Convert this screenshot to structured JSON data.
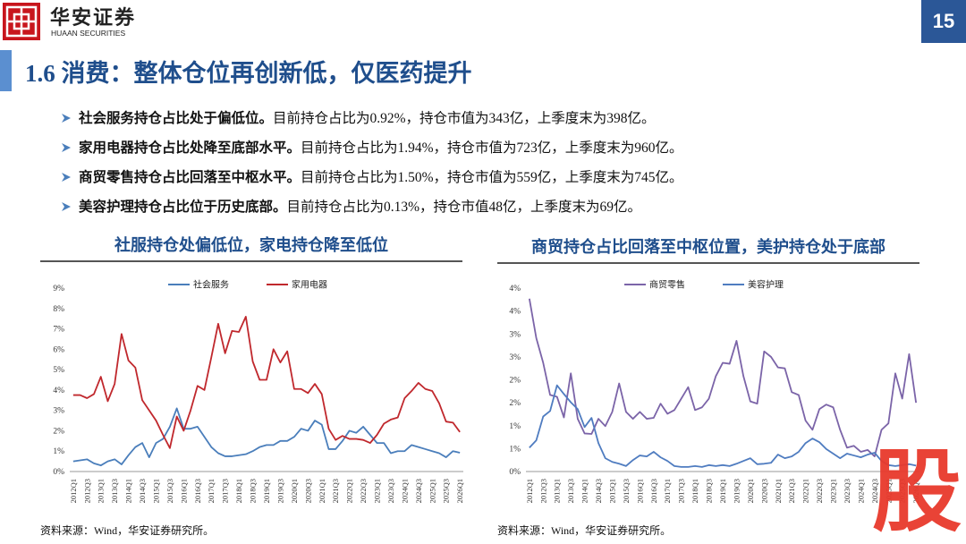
{
  "header": {
    "logo_cn": "华安证券",
    "logo_en": "HUAAN SECURITIES",
    "page_number": "15"
  },
  "title": "1.6 消费：整体仓位再创新低，仅医药提升",
  "bullets": [
    {
      "bold": "社会服务持仓占比处于偏低位。",
      "text": "目前持仓占比为0.92%，持仓市值为343亿，上季度末为398亿。"
    },
    {
      "bold": "家用电器持仓占比处降至底部水平。",
      "text": "目前持仓占比为1.94%，持仓市值为723亿，上季度末为960亿。"
    },
    {
      "bold": "商贸零售持仓占比回落至中枢水平。",
      "text": "目前持仓占比为1.50%，持仓市值为559亿，上季度末为745亿。"
    },
    {
      "bold": "美容护理持仓占比位于历史底部。",
      "text": "目前持仓占比为0.13%，持仓市值48亿，上季度末为69亿。"
    }
  ],
  "chart_data": [
    {
      "type": "line",
      "title": "社服持仓处偏低位，家电持仓降至低位",
      "source": "资料来源：Wind，华安证券研究所。",
      "legend": "top",
      "grid": false,
      "categories": [
        "2012Q1",
        null,
        "2012Q3",
        null,
        "2013Q1",
        null,
        "2013Q3",
        null,
        "2014Q1",
        null,
        "2014Q3",
        null,
        "2015Q1",
        null,
        "2015Q3",
        null,
        "2016Q1",
        null,
        "2016Q3",
        null,
        "2017Q1",
        null,
        "2017Q3",
        null,
        "2018Q1",
        null,
        "2018Q3",
        null,
        "2019Q1",
        null,
        "2019Q3",
        null,
        "2020Q1",
        null,
        "2020Q3",
        null,
        "2021Q1",
        null,
        "2021Q3",
        null,
        "2022Q1",
        null,
        "2022Q3",
        null,
        "2023Q1",
        null,
        "2023Q3",
        null,
        "2024Q1",
        null,
        "2024Q3",
        null,
        "2025Q1",
        null,
        "2025Q3",
        null,
        "2026Q1"
      ],
      "ylim": [
        0,
        9
      ],
      "yticks": [
        {
          "value": 0,
          "label": "0%"
        },
        {
          "value": 1,
          "label": "1%"
        },
        {
          "value": 2,
          "label": "2%"
        },
        {
          "value": 3,
          "label": "3%"
        },
        {
          "value": 4,
          "label": "4%"
        },
        {
          "value": 5,
          "label": "5%"
        },
        {
          "value": 6,
          "label": "6%"
        },
        {
          "value": 7,
          "label": "7%"
        },
        {
          "value": 8,
          "label": "8%"
        },
        {
          "value": 9,
          "label": "9%"
        }
      ],
      "series": [
        {
          "name": "社会服务",
          "color": "#4a7ebb",
          "values": [
            0.5,
            0.55,
            0.6,
            0.4,
            0.3,
            0.5,
            0.6,
            0.35,
            0.8,
            1.2,
            1.4,
            0.7,
            1.4,
            1.6,
            2.2,
            3.1,
            2.1,
            2.1,
            2.2,
            1.7,
            1.2,
            0.9,
            0.75,
            0.75,
            0.8,
            0.85,
            1.0,
            1.2,
            1.3,
            1.3,
            1.5,
            1.5,
            1.7,
            2.1,
            2.0,
            2.5,
            2.3,
            1.1,
            1.1,
            1.5,
            2.0,
            1.9,
            2.2,
            1.8,
            1.4,
            1.4,
            0.9,
            1.0,
            1.0,
            1.3,
            1.2,
            1.1,
            1.0,
            0.9,
            0.7,
            1.0,
            0.92
          ]
        },
        {
          "name": "家用电器",
          "color": "#c0282d",
          "values": [
            3.75,
            3.75,
            3.6,
            3.8,
            4.65,
            3.45,
            4.3,
            6.75,
            5.45,
            5.1,
            3.5,
            3.0,
            2.5,
            1.8,
            1.15,
            2.7,
            2.0,
            3.0,
            4.2,
            4.0,
            5.6,
            7.25,
            5.8,
            6.9,
            6.85,
            7.6,
            5.4,
            4.5,
            4.5,
            6.0,
            5.35,
            5.9,
            4.05,
            4.05,
            3.85,
            4.3,
            3.8,
            2.1,
            1.55,
            1.75,
            1.6,
            1.6,
            1.55,
            1.4,
            1.8,
            2.35,
            2.55,
            2.65,
            3.6,
            3.95,
            4.35,
            4.05,
            3.95,
            3.35,
            2.45,
            2.4,
            1.94
          ]
        }
      ]
    },
    {
      "type": "line",
      "title": "商贸持仓占比回落至中枢位置，美护持仓处于底部",
      "source": "资料来源：Wind，华安证券研究所。",
      "legend": "top",
      "grid": false,
      "categories": [
        "2012Q1",
        null,
        "2012Q3",
        null,
        "2013Q1",
        null,
        "2013Q3",
        null,
        "2014Q1",
        null,
        "2014Q3",
        null,
        "2015Q1",
        null,
        "2015Q3",
        null,
        "2016Q1",
        null,
        "2016Q3",
        null,
        "2017Q1",
        null,
        "2017Q3",
        null,
        "2018Q1",
        null,
        "2018Q3",
        null,
        "2019Q1",
        null,
        "2019Q3",
        null,
        "2020Q1",
        null,
        "2020Q3",
        null,
        "2021Q1",
        null,
        "2021Q3",
        null,
        "2022Q1",
        null,
        "2022Q3",
        null,
        "2023Q1",
        null,
        "2023Q3",
        null,
        "2024Q1",
        null,
        "2024Q3",
        null,
        "2025Q1",
        null,
        "2025Q3",
        null,
        "2026Q1"
      ],
      "ylim": [
        0,
        4
      ],
      "yticks": [
        {
          "value": 0,
          "label": "0%"
        },
        {
          "value": 0.5,
          "label": "1%"
        },
        {
          "value": 1,
          "label": "1%"
        },
        {
          "value": 1.5,
          "label": "2%"
        },
        {
          "value": 2,
          "label": "2%"
        },
        {
          "value": 2.5,
          "label": "3%"
        },
        {
          "value": 3,
          "label": "3%"
        },
        {
          "value": 3.5,
          "label": "4%"
        },
        {
          "value": 4,
          "label": "4%"
        }
      ],
      "series": [
        {
          "name": "商贸零售",
          "color": "#7b64a8",
          "values": [
            3.77,
            2.91,
            2.37,
            1.67,
            1.63,
            1.18,
            2.14,
            1.15,
            0.83,
            0.82,
            1.15,
            0.99,
            1.3,
            1.92,
            1.3,
            1.15,
            1.3,
            1.15,
            1.17,
            1.48,
            1.26,
            1.34,
            1.59,
            1.84,
            1.34,
            1.4,
            1.59,
            2.08,
            2.37,
            2.35,
            2.85,
            2.08,
            1.53,
            1.48,
            2.62,
            2.5,
            2.27,
            2.25,
            1.73,
            1.67,
            1.11,
            0.91,
            1.36,
            1.46,
            1.4,
            0.91,
            0.52,
            0.56,
            0.43,
            0.47,
            0.33,
            0.91,
            1.05,
            2.14,
            1.59,
            2.56,
            1.5
          ]
        },
        {
          "name": "美容护理",
          "color": "#4f7cc0",
          "values": [
            0.52,
            0.68,
            1.2,
            1.32,
            1.88,
            1.69,
            1.51,
            1.36,
            0.97,
            1.17,
            0.62,
            0.29,
            0.21,
            0.17,
            0.12,
            0.25,
            0.35,
            0.33,
            0.43,
            0.31,
            0.23,
            0.12,
            0.1,
            0.1,
            0.12,
            0.1,
            0.14,
            0.12,
            0.14,
            0.12,
            0.17,
            0.23,
            0.29,
            0.16,
            0.17,
            0.19,
            0.37,
            0.29,
            0.33,
            0.43,
            0.62,
            0.72,
            0.64,
            0.49,
            0.39,
            0.29,
            0.39,
            0.35,
            0.31,
            0.37,
            0.41,
            0.23,
            0.14,
            0.12,
            0.14,
            0.16,
            0.13
          ]
        }
      ]
    }
  ],
  "watermark": "股"
}
